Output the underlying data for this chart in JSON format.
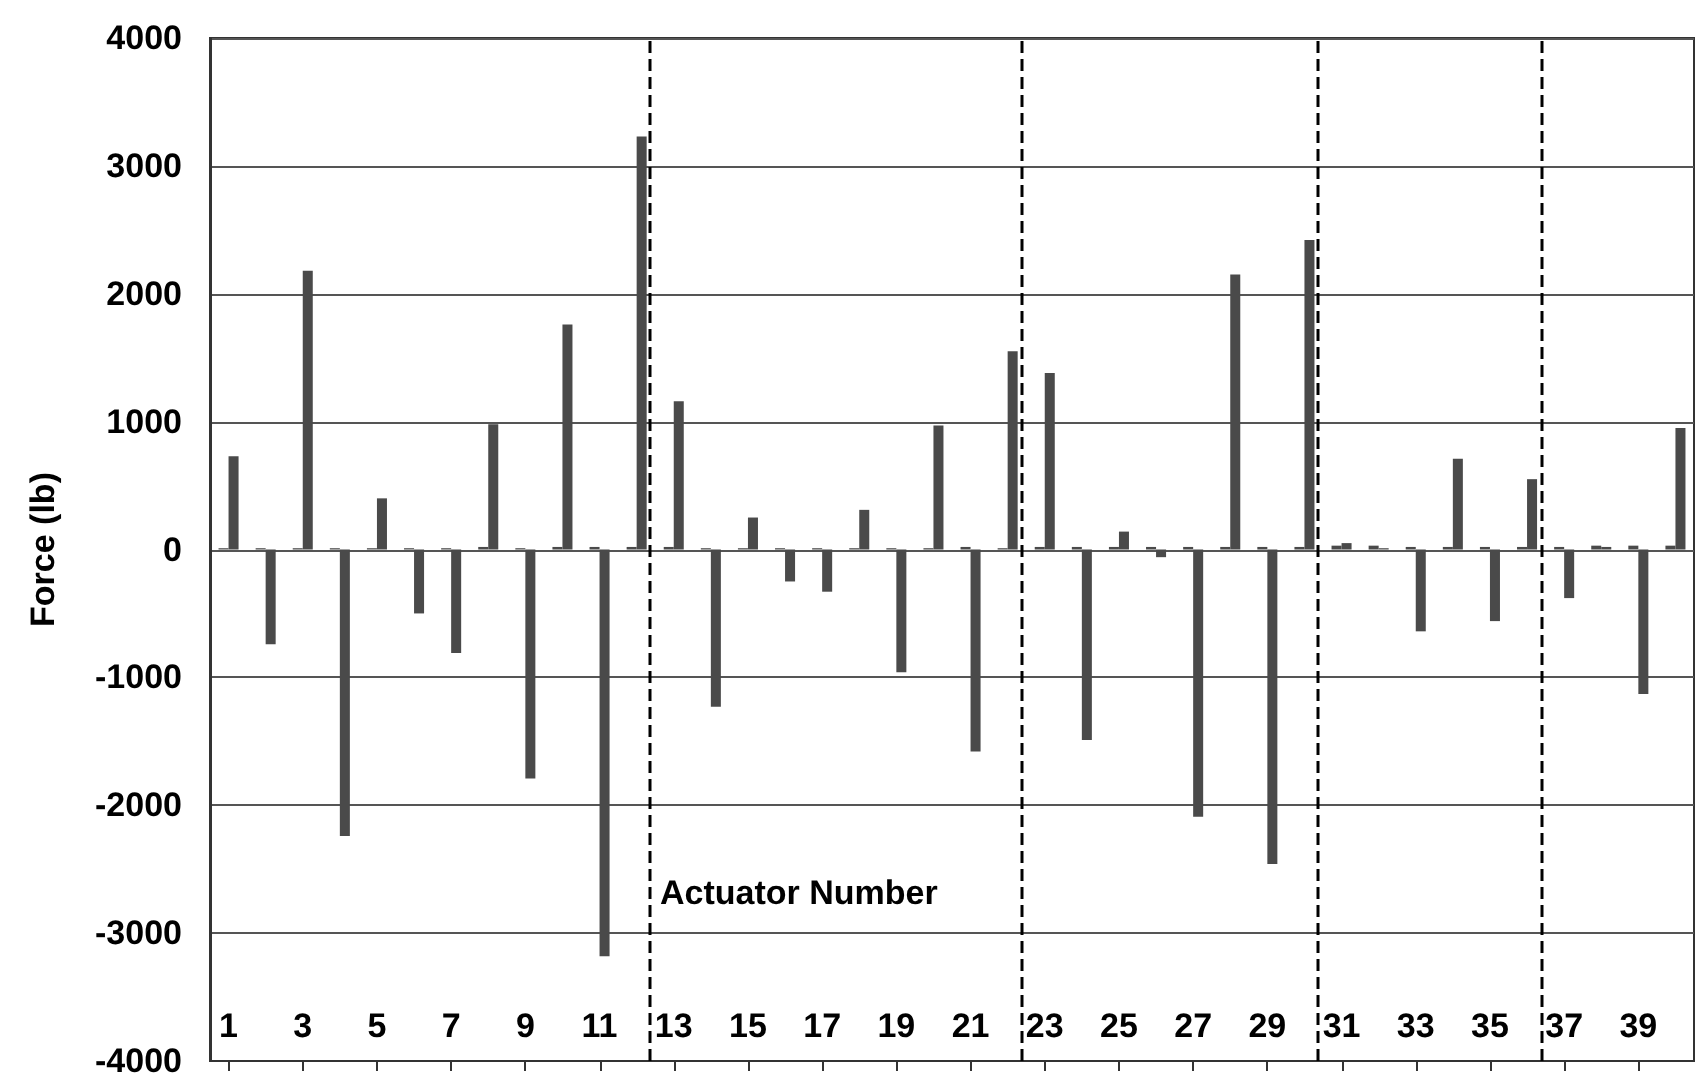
{
  "chart_data": {
    "type": "bar",
    "xlabel": "Actuator Number",
    "ylabel": "Force (lb)",
    "x": [
      1,
      2,
      3,
      4,
      5,
      6,
      7,
      8,
      9,
      10,
      11,
      12,
      13,
      14,
      15,
      16,
      17,
      18,
      19,
      20,
      21,
      22,
      23,
      24,
      25,
      26,
      27,
      28,
      29,
      30,
      31,
      32,
      33,
      34,
      35,
      36,
      37,
      38,
      39,
      40
    ],
    "xlim": [
      0.5,
      40.5
    ],
    "xticks": [
      1,
      3,
      5,
      7,
      9,
      11,
      13,
      15,
      17,
      19,
      21,
      23,
      25,
      27,
      29,
      31,
      33,
      35,
      37,
      39
    ],
    "ylim": [
      -4000,
      4000
    ],
    "yticks": [
      -4000,
      -3000,
      -2000,
      -1000,
      0,
      1000,
      2000,
      3000,
      4000
    ],
    "series": [
      {
        "color": "#4a4a4a",
        "values": [
          10,
          10,
          10,
          10,
          10,
          10,
          10,
          20,
          10,
          20,
          20,
          20,
          20,
          10,
          10,
          10,
          10,
          10,
          10,
          10,
          20,
          10,
          20,
          20,
          20,
          20,
          20,
          20,
          20,
          20,
          30,
          30,
          20,
          20,
          20,
          20,
          20,
          30,
          30,
          30
        ]
      },
      {
        "color": "#4a4a4a",
        "values": [
          730,
          -740,
          2180,
          -2240,
          400,
          -500,
          -810,
          980,
          -1790,
          1760,
          -3180,
          3230,
          1160,
          -1230,
          250,
          -250,
          -330,
          310,
          -960,
          970,
          -1580,
          1550,
          1380,
          -1490,
          140,
          -60,
          -2090,
          2150,
          -2460,
          2420,
          50,
          10,
          -640,
          710,
          -560,
          550,
          -380,
          20,
          -1130,
          950
        ]
      }
    ],
    "ref_lines": [
      {
        "axis": "x",
        "value": 12.5,
        "line_style": "dashed",
        "color": "#000000"
      },
      {
        "axis": "x",
        "value": 22.5,
        "line_style": "dashed",
        "color": "#000000"
      },
      {
        "axis": "x",
        "value": 30.5,
        "line_style": "dashed",
        "color": "#000000"
      },
      {
        "axis": "x",
        "value": 36.5,
        "line_style": "dashed",
        "color": "#000000"
      }
    ],
    "grid": "y"
  }
}
